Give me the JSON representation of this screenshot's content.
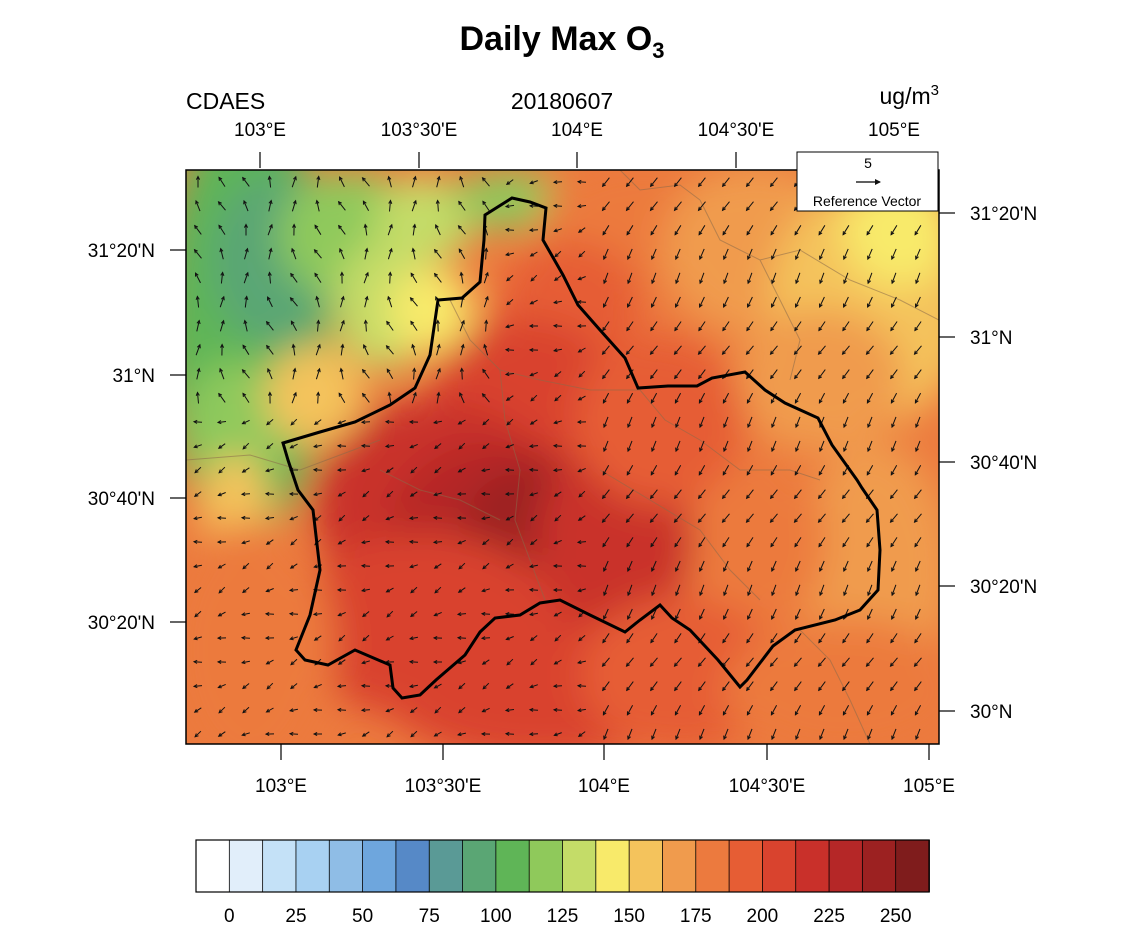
{
  "title": {
    "main": "Daily Max O",
    "sub": "3"
  },
  "header": {
    "left": "CDAES",
    "center": "20180607",
    "units_main": "ug/m",
    "units_sup": "3"
  },
  "axes": {
    "top_lon_labels": [
      "103°E",
      "103°30'E",
      "104°E",
      "104°30'E",
      "105°E"
    ],
    "bottom_lon_labels": [
      "103°E",
      "103°30'E",
      "104°E",
      "104°30'E",
      "105°E"
    ],
    "left_lat_labels": [
      "31°20'N",
      "31°N",
      "30°40'N",
      "30°20'N"
    ],
    "right_lat_labels": [
      "31°20'N",
      "31°N",
      "30°40'N",
      "30°20'N",
      "30°N"
    ]
  },
  "reference_vector": {
    "value": "5",
    "label": "Reference Vector"
  },
  "colorbar": {
    "colors": [
      "#ffffff",
      "#e1eefa",
      "#c4e1f7",
      "#a8d1f2",
      "#8fbde6",
      "#6ea6dd",
      "#5689c7",
      "#5a9a96",
      "#5aa674",
      "#5fb557",
      "#8fc95b",
      "#c4dc68",
      "#f8ea6a",
      "#f4c35c",
      "#f09b4d",
      "#ec7a3e",
      "#e65d34",
      "#d9432e",
      "#c9302a",
      "#b52727",
      "#9c2121",
      "#7f1c1c"
    ],
    "tick_labels": [
      "0",
      "25",
      "50",
      "75",
      "100",
      "125",
      "150",
      "175",
      "200",
      "225",
      "250"
    ]
  },
  "map": {
    "field_color_stops": [
      {
        "v": 110,
        "c": "#5fb557"
      },
      {
        "v": 130,
        "c": "#8fc95b"
      },
      {
        "v": 150,
        "c": "#f8ea6a"
      },
      {
        "v": 165,
        "c": "#f4c35c"
      },
      {
        "v": 180,
        "c": "#f09b4d"
      },
      {
        "v": 195,
        "c": "#ec7a3e"
      },
      {
        "v": 210,
        "c": "#e65d34"
      },
      {
        "v": 225,
        "c": "#d9432e"
      },
      {
        "v": 238,
        "c": "#c9302a"
      },
      {
        "v": 250,
        "c": "#b52727"
      },
      {
        "v": 262,
        "c": "#9c2121"
      }
    ]
  }
}
